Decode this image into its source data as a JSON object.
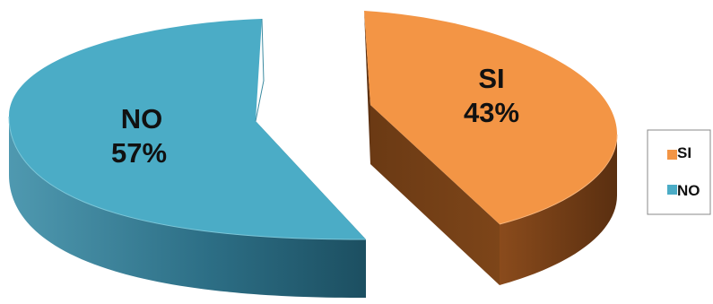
{
  "chart_data": {
    "type": "pie",
    "style": "3d-exploded",
    "slices": [
      {
        "name": "SI",
        "value": 43,
        "label": "43%",
        "color": "#F39545"
      },
      {
        "name": "NO",
        "value": 57,
        "label": "57%",
        "color": "#4BACC6"
      }
    ],
    "title": "",
    "legend": {
      "position": "right",
      "entries": [
        "SI",
        "NO"
      ]
    }
  }
}
